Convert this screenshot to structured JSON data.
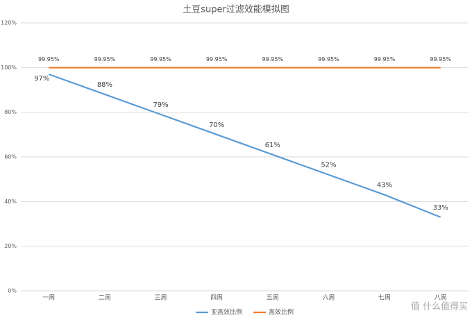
{
  "chart_data": {
    "type": "line",
    "title": "土豆super过滤效能模拟图",
    "categories": [
      "一周",
      "二周",
      "三周",
      "四周",
      "五周",
      "六周",
      "七周",
      "八周"
    ],
    "series": [
      {
        "name": "亚高效比例",
        "color": "#5b9bd5",
        "values": [
          97,
          88,
          79,
          70,
          61,
          52,
          43,
          33
        ],
        "value_labels": [
          "97%",
          "88%",
          "79%",
          "70%",
          "61%",
          "52%",
          "43%",
          "33%"
        ]
      },
      {
        "name": "高效比例",
        "color": "#ed7d31",
        "values": [
          99.95,
          99.95,
          99.95,
          99.95,
          99.95,
          99.95,
          99.95,
          99.95
        ],
        "value_labels": [
          "99.95%",
          "99.95%",
          "99.95%",
          "99.95%",
          "99.95%",
          "99.95%",
          "99.95%",
          "99.95%"
        ]
      }
    ],
    "ylim": [
      0,
      120
    ],
    "yticks": [
      {
        "value": 0,
        "label": "0%"
      },
      {
        "value": 20,
        "label": "20%"
      },
      {
        "value": 40,
        "label": "40%"
      },
      {
        "value": 60,
        "label": "60%"
      },
      {
        "value": 80,
        "label": "80%"
      },
      {
        "value": 100,
        "label": "100%"
      },
      {
        "value": 120,
        "label": "120%"
      }
    ],
    "grid": true,
    "legend": "bottom",
    "watermark": "值 什么值得买"
  }
}
